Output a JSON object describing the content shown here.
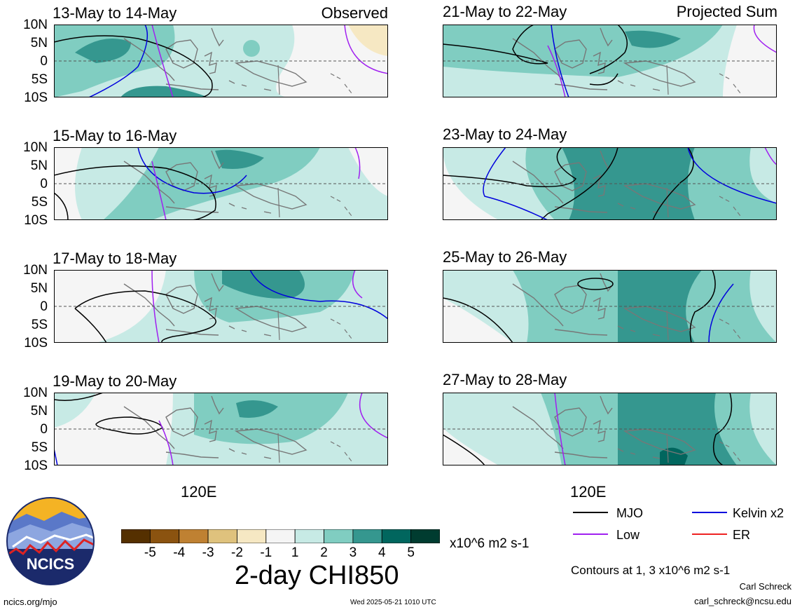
{
  "tags": {
    "observed": "Observed",
    "projected": "Projected Sum"
  },
  "panels": [
    {
      "title": "13-May to 14-May",
      "column": "observed"
    },
    {
      "title": "15-May to 16-May",
      "column": "observed"
    },
    {
      "title": "17-May to 18-May",
      "column": "observed"
    },
    {
      "title": "19-May to 20-May",
      "column": "observed"
    },
    {
      "title": "21-May to 22-May",
      "column": "projected"
    },
    {
      "title": "23-May to 24-May",
      "column": "projected"
    },
    {
      "title": "25-May to 26-May",
      "column": "projected"
    },
    {
      "title": "27-May to 28-May",
      "column": "projected"
    }
  ],
  "lat_labels": [
    "10N",
    "5N",
    "0",
    "5S",
    "10S"
  ],
  "lon_label": "120E",
  "colorbar": {
    "colors": [
      "#553000",
      "#8b5310",
      "#bf8132",
      "#dfc27d",
      "#f6e8c3",
      "#f5f5f5",
      "#c7eae5",
      "#80cdc1",
      "#35978f",
      "#01665e",
      "#003c30"
    ],
    "ticks": [
      "-5",
      "-4",
      "-3",
      "-2",
      "-1",
      "1",
      "2",
      "3",
      "4",
      "5"
    ],
    "units": "x10^6 m2 s-1"
  },
  "main_title": "2-day CHI850",
  "legend": [
    {
      "label": "MJO",
      "color": "#000000"
    },
    {
      "label": "Kelvin x2",
      "color": "#0000dd"
    },
    {
      "label": "Low",
      "color": "#a020f0"
    },
    {
      "label": "ER",
      "color": "#ee2222"
    }
  ],
  "contours_note": "Contours at 1, 3 x10^6 m2 s-1",
  "author": "Carl Schreck",
  "email": "carl_schreck@ncsu.edu",
  "url": "ncics.org/mjo",
  "timestamp": "Wed 2025-05-21 1010 UTC",
  "logo_text": "NCICS"
}
